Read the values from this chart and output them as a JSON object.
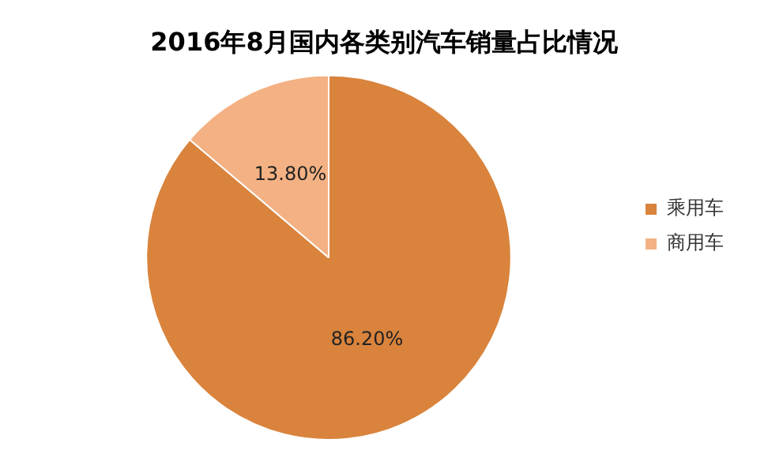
{
  "chart_data": {
    "type": "pie",
    "title": "2016年8月国内各类别汽车销量占比情况",
    "categories": [
      "乘用车",
      "商用车"
    ],
    "values": [
      86.2,
      13.8
    ],
    "colors": [
      "#d9833c",
      "#f4b183"
    ],
    "value_labels": [
      "86.20%",
      "13.80%"
    ],
    "legend": "right"
  }
}
